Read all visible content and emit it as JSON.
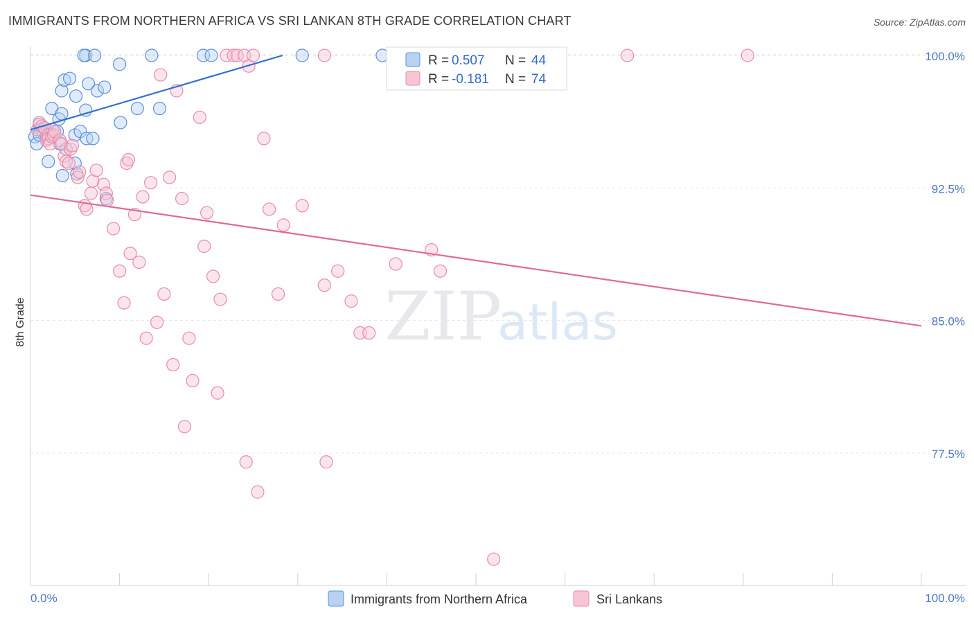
{
  "title": "IMMIGRANTS FROM NORTHERN AFRICA VS SRI LANKAN 8TH GRADE CORRELATION CHART",
  "source": "Source: ZipAtlas.com",
  "watermark": {
    "zip": "ZIP",
    "atlas": "atlas"
  },
  "colors": {
    "blue_fill": "#b9d2f3",
    "blue_stroke": "#5b8fd6",
    "blue_line": "#3370d0",
    "pink_fill": "#f7c5d4",
    "pink_stroke": "#e88aa8",
    "pink_line": "#e06a94",
    "grid": "#e6e6e6",
    "tick_text": "#4a78c8"
  },
  "legend": {
    "rows": [
      {
        "r_label": "R =",
        "r_value": "0.507",
        "n_label": "N =",
        "n_value": "44"
      },
      {
        "r_label": "R =",
        "r_value": "-0.181",
        "n_label": "N =",
        "n_value": "74"
      }
    ]
  },
  "bottom_legend": [
    "Immigrants from Northern Africa",
    "Sri Lankans"
  ],
  "chart_data": {
    "type": "scatter",
    "title": "IMMIGRANTS FROM NORTHERN AFRICA VS SRI LANKAN 8TH GRADE CORRELATION CHART",
    "xlabel": "",
    "ylabel": "8th Grade",
    "xlim": [
      0,
      100
    ],
    "ylim": [
      71,
      101
    ],
    "x_tick_labels": [
      "0.0%",
      "100.0%"
    ],
    "y_ticks": [
      77.5,
      85.0,
      92.5,
      100.0
    ],
    "y_tick_labels": [
      "77.5%",
      "85.0%",
      "92.5%",
      "100.0%"
    ],
    "grid": true,
    "legend_position": "top-center",
    "series": [
      {
        "name": "Immigrants from Northern Africa",
        "r": 0.507,
        "n": 44,
        "trend": [
          [
            0,
            95.8
          ],
          [
            28.3,
            100
          ]
        ],
        "points": [
          [
            0.5,
            95.4
          ],
          [
            0.7,
            95.0
          ],
          [
            1.0,
            96.1
          ],
          [
            1.2,
            95.8
          ],
          [
            1.5,
            95.6
          ],
          [
            1.8,
            95.5
          ],
          [
            2.0,
            94.0
          ],
          [
            2.3,
            95.5
          ],
          [
            2.5,
            95.8
          ],
          [
            2.4,
            97.0
          ],
          [
            3.0,
            95.7
          ],
          [
            3.2,
            96.4
          ],
          [
            3.5,
            96.7
          ],
          [
            3.3,
            95.0
          ],
          [
            3.6,
            93.2
          ],
          [
            3.5,
            98.0
          ],
          [
            3.8,
            98.6
          ],
          [
            4.0,
            94.7
          ],
          [
            4.4,
            98.7
          ],
          [
            5.0,
            95.5
          ],
          [
            5.0,
            93.9
          ],
          [
            5.2,
            93.3
          ],
          [
            5.1,
            97.7
          ],
          [
            5.6,
            95.7
          ],
          [
            6.2,
            96.9
          ],
          [
            6.3,
            95.3
          ],
          [
            6.5,
            98.4
          ],
          [
            7.0,
            95.3
          ],
          [
            6.2,
            100
          ],
          [
            6.0,
            100
          ],
          [
            7.2,
            100
          ],
          [
            7.5,
            98.0
          ],
          [
            8.3,
            98.2
          ],
          [
            8.5,
            91.9
          ],
          [
            10.0,
            99.5
          ],
          [
            10.1,
            96.2
          ],
          [
            12.0,
            97.0
          ],
          [
            13.6,
            100
          ],
          [
            14.5,
            97.0
          ],
          [
            19.4,
            100
          ],
          [
            20.3,
            100
          ],
          [
            30.5,
            100
          ],
          [
            39.5,
            100
          ],
          [
            1.0,
            95.5
          ]
        ]
      },
      {
        "name": "Sri Lankans",
        "r": -0.181,
        "n": 74,
        "trend": [
          [
            0,
            92.1
          ],
          [
            100,
            84.7
          ]
        ],
        "points": [
          [
            0.8,
            95.8
          ],
          [
            1.0,
            96.2
          ],
          [
            1.3,
            96.0
          ],
          [
            1.6,
            95.9
          ],
          [
            1.8,
            95.2
          ],
          [
            2.0,
            95.5
          ],
          [
            2.0,
            95.3
          ],
          [
            2.2,
            95.0
          ],
          [
            2.4,
            95.4
          ],
          [
            2.6,
            95.5
          ],
          [
            2.7,
            95.7
          ],
          [
            3.3,
            95.2
          ],
          [
            3.5,
            95.0
          ],
          [
            3.8,
            94.3
          ],
          [
            4.0,
            94.0
          ],
          [
            4.3,
            93.9
          ],
          [
            4.5,
            94.7
          ],
          [
            4.7,
            94.9
          ],
          [
            5.3,
            93.1
          ],
          [
            5.5,
            93.4
          ],
          [
            6.1,
            91.5
          ],
          [
            6.3,
            91.3
          ],
          [
            6.8,
            92.2
          ],
          [
            7.0,
            92.9
          ],
          [
            7.4,
            93.5
          ],
          [
            8.2,
            92.7
          ],
          [
            8.5,
            92.2
          ],
          [
            8.6,
            91.8
          ],
          [
            9.3,
            90.2
          ],
          [
            10.0,
            87.8
          ],
          [
            10.5,
            86.0
          ],
          [
            10.8,
            93.9
          ],
          [
            11.0,
            94.1
          ],
          [
            11.2,
            88.8
          ],
          [
            11.7,
            91.0
          ],
          [
            12.2,
            88.3
          ],
          [
            12.6,
            92.0
          ],
          [
            13.0,
            84.0
          ],
          [
            13.5,
            92.8
          ],
          [
            14.2,
            84.9
          ],
          [
            14.6,
            98.9
          ],
          [
            15.0,
            86.5
          ],
          [
            15.6,
            93.1
          ],
          [
            16.0,
            82.5
          ],
          [
            16.4,
            98.0
          ],
          [
            17.0,
            91.9
          ],
          [
            17.3,
            79.0
          ],
          [
            17.8,
            84.0
          ],
          [
            18.2,
            81.6
          ],
          [
            19.0,
            96.5
          ],
          [
            19.5,
            89.2
          ],
          [
            19.8,
            91.1
          ],
          [
            20.5,
            87.5
          ],
          [
            21.0,
            80.9
          ],
          [
            21.3,
            86.2
          ],
          [
            22.0,
            100
          ],
          [
            22.8,
            100
          ],
          [
            23.2,
            100
          ],
          [
            24.0,
            100
          ],
          [
            24.2,
            77.0
          ],
          [
            24.5,
            99.4
          ],
          [
            25.0,
            100
          ],
          [
            25.5,
            75.3
          ],
          [
            26.2,
            95.3
          ],
          [
            26.8,
            91.3
          ],
          [
            27.8,
            86.5
          ],
          [
            28.4,
            90.4
          ],
          [
            30.5,
            91.5
          ],
          [
            33.0,
            100
          ],
          [
            33.2,
            77.0
          ],
          [
            33.0,
            87.0
          ],
          [
            34.5,
            87.8
          ],
          [
            36.0,
            86.1
          ],
          [
            37.0,
            84.3
          ]
        ]
      }
    ],
    "extra_points_sri_lankans": [
      [
        38.0,
        84.3
      ],
      [
        41.0,
        88.2
      ],
      [
        45.0,
        89.0
      ],
      [
        46.0,
        87.8
      ],
      [
        52.0,
        71.5
      ],
      [
        67.0,
        100
      ],
      [
        80.5,
        100
      ]
    ]
  }
}
